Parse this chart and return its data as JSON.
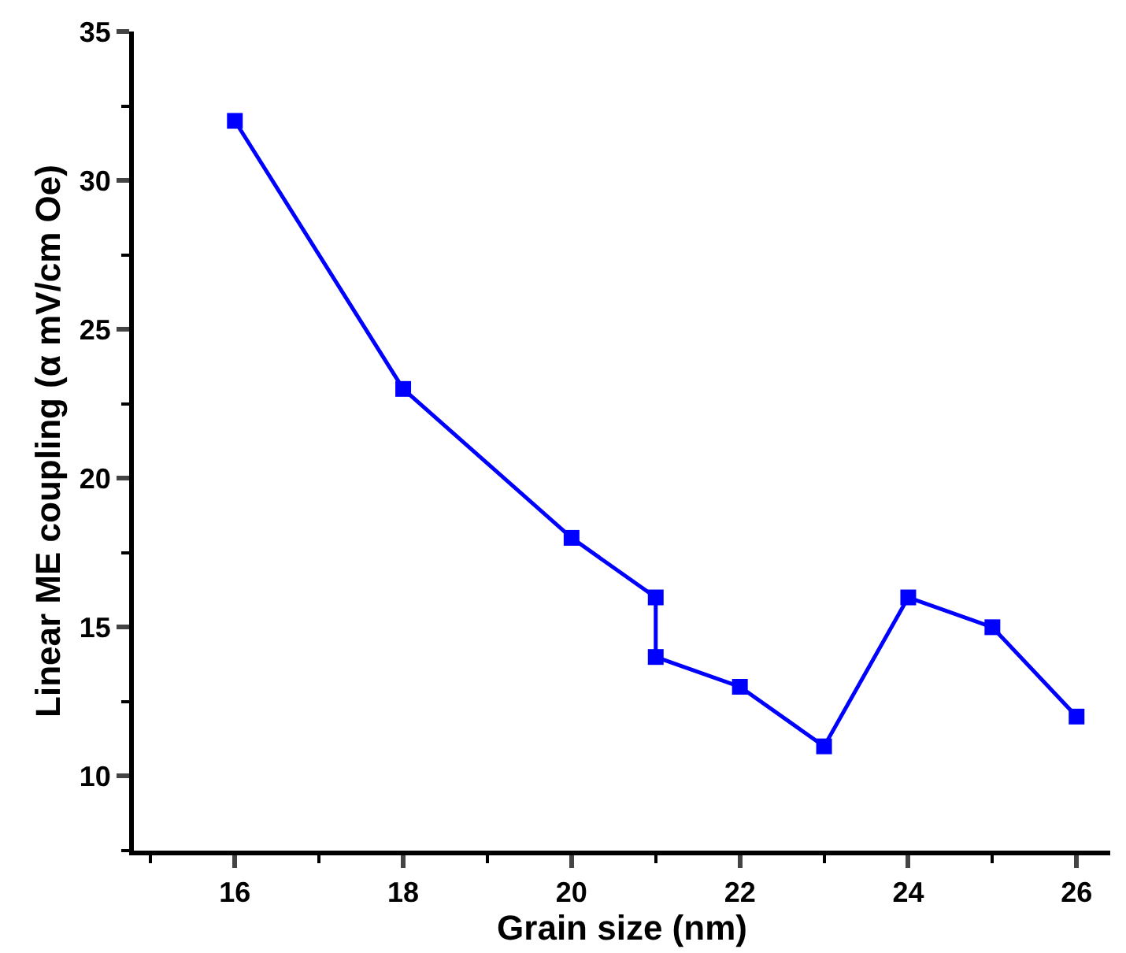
{
  "chart_data": {
    "type": "line",
    "xlabel": "Grain size (nm)",
    "ylabel": "Linear ME coupling (α mV/cm Oe)",
    "x": [
      16,
      18,
      20,
      21,
      21,
      22,
      23,
      24,
      25,
      26
    ],
    "series": [
      {
        "color": "#0000ff",
        "values": [
          32,
          23,
          18,
          16,
          14,
          13,
          11,
          16,
          15,
          12
        ]
      }
    ],
    "xlim": [
      14.8,
      26.4
    ],
    "xticks": [
      16,
      18,
      20,
      22,
      24,
      26
    ],
    "ylim": [
      7.5,
      35
    ],
    "yticks": [
      10,
      15,
      20,
      25,
      30,
      35
    ],
    "marker": "square",
    "line_style": "solid",
    "legend": false
  }
}
